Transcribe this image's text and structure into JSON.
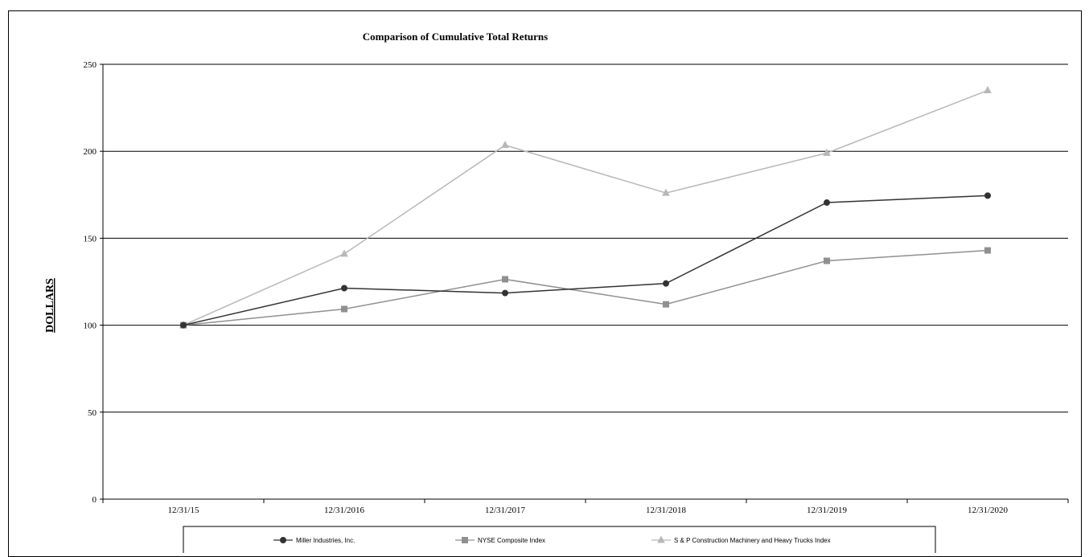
{
  "chart_data": {
    "type": "line",
    "title": "Comparison of Cumulative Total Returns",
    "xlabel": "",
    "ylabel": "DOLLARS",
    "categories": [
      "12/31/15",
      "12/31/2016",
      "12/31/2017",
      "12/31/2018",
      "12/31/2019",
      "12/31/2020"
    ],
    "ylim": [
      0,
      250
    ],
    "yticks": [
      0,
      50,
      100,
      150,
      200,
      250
    ],
    "grid": true,
    "legend_position": "bottom",
    "series": [
      {
        "name": "Miller Industries, Inc.",
        "values": [
          100,
          121.3,
          118.5,
          124,
          170.5,
          174.5
        ],
        "color": "#333333",
        "marker": "circle"
      },
      {
        "name": "NYSE Composite Index",
        "values": [
          100,
          109.3,
          126.4,
          112,
          137,
          143
        ],
        "color": "#909090",
        "marker": "square"
      },
      {
        "name": "S & P Construction Machinery and Heavy Trucks Index",
        "values": [
          100,
          141,
          203.5,
          176,
          199,
          235
        ],
        "color": "#b8b8b8",
        "marker": "triangle"
      }
    ]
  }
}
